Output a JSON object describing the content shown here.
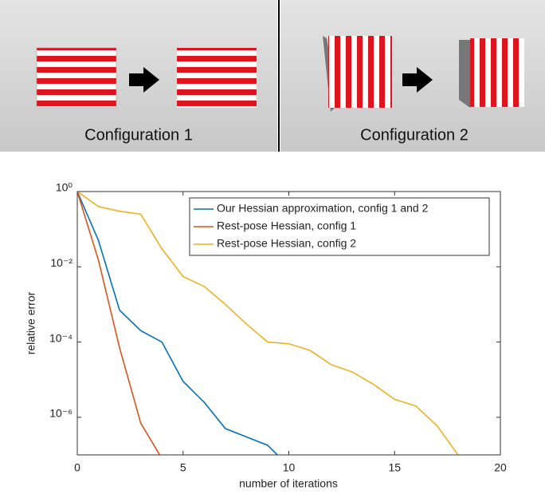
{
  "panels": [
    {
      "caption": "Configuration 1"
    },
    {
      "caption": "Configuration 2"
    }
  ],
  "chart_data": {
    "type": "line",
    "xlabel": "number of iterations",
    "ylabel": "relative error",
    "x": [
      0,
      1,
      2,
      3,
      4,
      5,
      6,
      7,
      8,
      9,
      10,
      11,
      12,
      13,
      14,
      15,
      16,
      17,
      18
    ],
    "series": [
      {
        "name": "Our Hessian approximation, config 1 and 2",
        "color": "#0072bd",
        "values": [
          1,
          0.05,
          0.0007,
          0.0002,
          0.0001,
          9e-06,
          2.5e-06,
          5e-07,
          3e-07,
          1.8e-07,
          5e-08,
          null,
          null,
          null,
          null,
          null,
          null,
          null,
          null
        ]
      },
      {
        "name": "Rest-pose Hessian, config 1",
        "color": "#d95319",
        "values": [
          1,
          0.015,
          7e-05,
          7e-07,
          8e-08,
          null,
          null,
          null,
          null,
          null,
          null,
          null,
          null,
          null,
          null,
          null,
          null,
          null,
          null
        ]
      },
      {
        "name": "Rest-pose Hessian, config 2",
        "color": "#edb120",
        "values": [
          1,
          0.4,
          0.3,
          0.25,
          0.03,
          0.0055,
          0.003,
          0.001,
          0.0003,
          0.0001,
          9e-05,
          6e-05,
          2.5e-05,
          1.6e-05,
          7.5e-06,
          3e-06,
          2e-06,
          6e-07,
          1e-07
        ]
      }
    ],
    "xlim": [
      0,
      20
    ],
    "xticks": [
      0,
      5,
      10,
      15,
      20
    ],
    "ylim": [
      1e-07,
      1
    ],
    "log_y": true,
    "yticks": [
      {
        "value": 1,
        "label": "10⁰"
      },
      {
        "value": 0.01,
        "label": "10⁻²"
      },
      {
        "value": 0.0001,
        "label": "10⁻⁴"
      },
      {
        "value": 1e-06,
        "label": "10⁻⁶"
      }
    ],
    "legend": "upper right"
  }
}
